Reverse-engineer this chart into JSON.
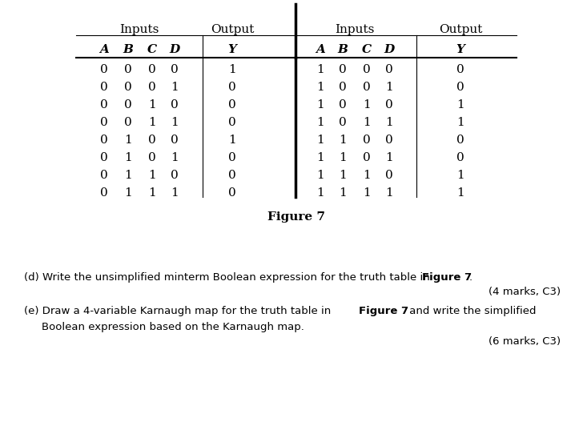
{
  "title": "Figure 7",
  "header_row1_left": [
    "Inputs",
    "Output"
  ],
  "header_row1_right": [
    "Inputs",
    "Output"
  ],
  "header_row2": [
    "A",
    "B",
    "C",
    "D",
    "Y",
    "A",
    "B",
    "C",
    "D",
    "Y"
  ],
  "left_table": [
    [
      0,
      0,
      0,
      0,
      1
    ],
    [
      0,
      0,
      0,
      1,
      0
    ],
    [
      0,
      0,
      1,
      0,
      0
    ],
    [
      0,
      0,
      1,
      1,
      0
    ],
    [
      0,
      1,
      0,
      0,
      1
    ],
    [
      0,
      1,
      0,
      1,
      0
    ],
    [
      0,
      1,
      1,
      0,
      0
    ],
    [
      0,
      1,
      1,
      1,
      0
    ]
  ],
  "right_table": [
    [
      1,
      0,
      0,
      0,
      0
    ],
    [
      1,
      0,
      0,
      1,
      0
    ],
    [
      1,
      0,
      1,
      0,
      1
    ],
    [
      1,
      0,
      1,
      1,
      1
    ],
    [
      1,
      1,
      0,
      0,
      0
    ],
    [
      1,
      1,
      0,
      1,
      0
    ],
    [
      1,
      1,
      1,
      0,
      1
    ],
    [
      1,
      1,
      1,
      1,
      1
    ]
  ],
  "text_d": "(d) Write the unsimplified minterm Boolean expression for the truth table in ",
  "text_d_bold": "Figure 7",
  "text_d_end": ".",
  "text_d_marks": "(4 marks, C3)",
  "text_e_start": "(e) Draw a 4-variable Karnaugh map for the truth table in ",
  "text_e_bold": "Figure 7",
  "text_e_mid": " and write the simplified",
  "text_e2": "Boolean expression based on the Karnaugh map.",
  "text_e_marks": "(6 marks, C3)",
  "bg_color": "#ffffff",
  "text_color": "#000000",
  "font_size_table": 11,
  "font_size_header": 11,
  "font_size_caption": 11,
  "font_size_body": 10.5
}
